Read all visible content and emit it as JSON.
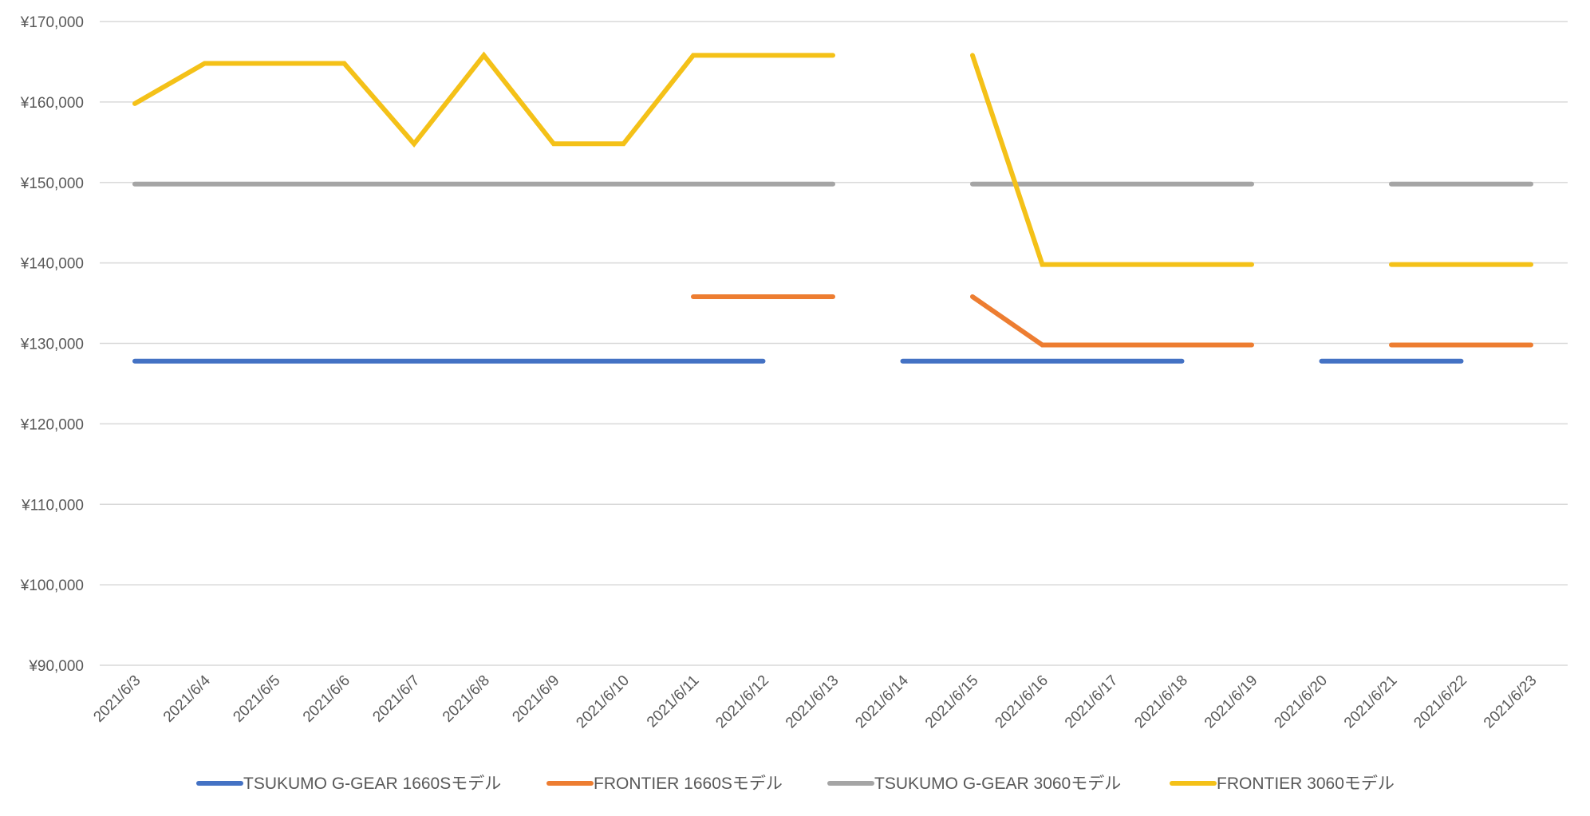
{
  "chart_data": {
    "type": "line",
    "title": "",
    "xlabel": "",
    "ylabel": "",
    "ylim": [
      90000,
      170000
    ],
    "yticks": [
      90000,
      100000,
      110000,
      120000,
      130000,
      140000,
      150000,
      160000,
      170000
    ],
    "ytick_labels": [
      "¥90,000",
      "¥100,000",
      "¥110,000",
      "¥120,000",
      "¥130,000",
      "¥140,000",
      "¥150,000",
      "¥160,000",
      "¥170,000"
    ],
    "grid": true,
    "legend_position": "bottom",
    "categories": [
      "2021/6/3",
      "2021/6/4",
      "2021/6/5",
      "2021/6/6",
      "2021/6/7",
      "2021/6/8",
      "2021/6/9",
      "2021/6/10",
      "2021/6/11",
      "2021/6/12",
      "2021/6/13",
      "2021/6/14",
      "2021/6/15",
      "2021/6/16",
      "2021/6/17",
      "2021/6/18",
      "2021/6/19",
      "2021/6/20",
      "2021/6/21",
      "2021/6/22",
      "2021/6/23"
    ],
    "series": [
      {
        "name": "TSUKUMO G-GEAR 1660Sモデル",
        "color": "#4472c4",
        "values": [
          127800,
          127800,
          127800,
          127800,
          127800,
          127800,
          127800,
          127800,
          127800,
          127800,
          null,
          127800,
          127800,
          127800,
          127800,
          127800,
          null,
          127800,
          127800,
          127800,
          null
        ]
      },
      {
        "name": "FRONTIER 1660Sモデル",
        "color": "#ed7d31",
        "values": [
          null,
          null,
          null,
          null,
          null,
          null,
          null,
          null,
          135800,
          135800,
          135800,
          null,
          135800,
          129800,
          129800,
          129800,
          129800,
          null,
          129800,
          129800,
          129800
        ]
      },
      {
        "name": "TSUKUMO G-GEAR 3060モデル",
        "color": "#a5a5a5",
        "values": [
          149800,
          149800,
          149800,
          149800,
          149800,
          149800,
          149800,
          149800,
          149800,
          149800,
          149800,
          null,
          149800,
          149800,
          149800,
          149800,
          149800,
          null,
          149800,
          149800,
          149800
        ]
      },
      {
        "name": "FRONTIER 3060モデル",
        "color": "#f4c118",
        "values": [
          159800,
          164800,
          164800,
          164800,
          154800,
          165800,
          154800,
          154800,
          165800,
          165800,
          165800,
          null,
          165800,
          139800,
          139800,
          139800,
          139800,
          null,
          139800,
          139800,
          139800
        ]
      }
    ]
  }
}
